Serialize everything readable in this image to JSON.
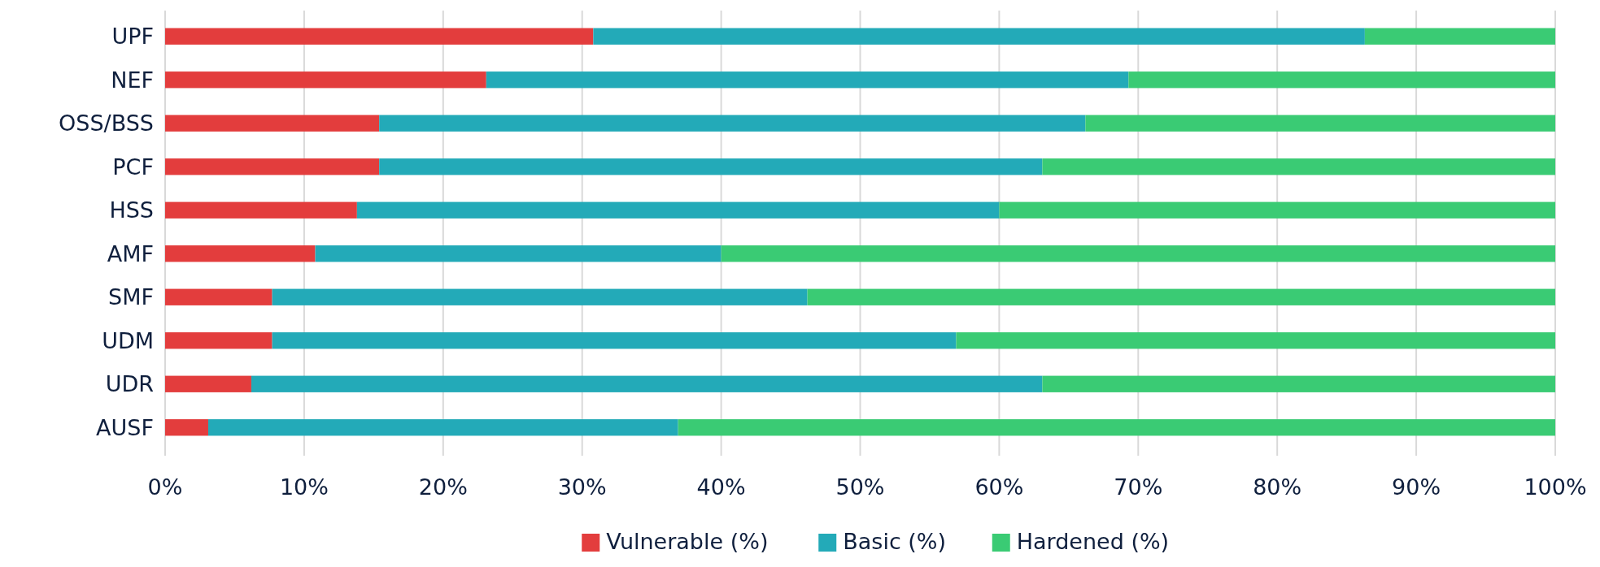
{
  "chart_data": {
    "type": "bar",
    "orientation": "horizontal",
    "stacked": true,
    "categories": [
      "UPF",
      "NEF",
      "OSS/BSS",
      "PCF",
      "HSS",
      "AMF",
      "SMF",
      "UDM",
      "UDR",
      "AUSF"
    ],
    "series": [
      {
        "name": "Vulnerable (%)",
        "color": "#e33d3d",
        "values": [
          30.8,
          23.1,
          15.4,
          15.4,
          13.8,
          10.8,
          7.7,
          7.7,
          6.2,
          3.1
        ]
      },
      {
        "name": "Basic (%)",
        "color": "#23aab8",
        "values": [
          55.5,
          46.2,
          50.8,
          47.7,
          46.2,
          29.2,
          38.5,
          49.2,
          56.9,
          33.8
        ]
      },
      {
        "name": "Hardened (%)",
        "color": "#3acb74",
        "values": [
          13.7,
          30.7,
          33.8,
          36.9,
          40.0,
          60.0,
          53.8,
          43.1,
          36.9,
          63.1
        ]
      }
    ],
    "xlim": [
      0,
      100
    ],
    "xticks": [
      {
        "value": 0,
        "label": "0%"
      },
      {
        "value": 10,
        "label": "10%"
      },
      {
        "value": 20,
        "label": "20%"
      },
      {
        "value": 30,
        "label": "30%"
      },
      {
        "value": 40,
        "label": "40%"
      },
      {
        "value": 50,
        "label": "50%"
      },
      {
        "value": 60,
        "label": "60%"
      },
      {
        "value": 70,
        "label": "70%"
      },
      {
        "value": 80,
        "label": "80%"
      },
      {
        "value": 90,
        "label": "90%"
      },
      {
        "value": 100,
        "label": "100%"
      }
    ],
    "grid": "x",
    "legend": "bottom"
  }
}
